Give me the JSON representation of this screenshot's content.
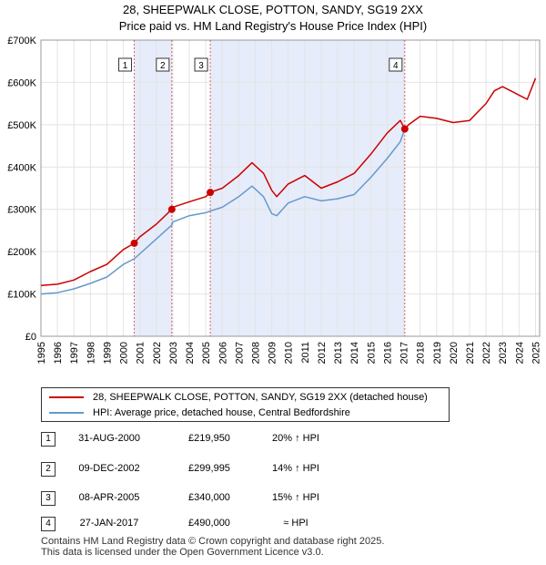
{
  "colors": {
    "property_line": "#cc0000",
    "hpi_line": "#6699cc",
    "shade": "#dde6f7",
    "marker_line": "#cc0000"
  },
  "footer": {
    "line1": "Contains HM Land Registry data © Crown copyright and database right 2025.",
    "line2": "This data is licensed under the Open Government Licence v3.0."
  },
  "chart_data": {
    "type": "line",
    "title": "28, SHEEPWALK CLOSE, POTTON, SANDY, SG19 2XX",
    "subtitle": "Price paid vs. HM Land Registry's House Price Index (HPI)",
    "xlim": [
      1995,
      2025.25
    ],
    "ylim": [
      0,
      700000
    ],
    "yticks": [
      0,
      100000,
      200000,
      300000,
      400000,
      500000,
      600000,
      700000
    ],
    "ytick_labels": [
      "£0",
      "£100K",
      "£200K",
      "£300K",
      "£400K",
      "£500K",
      "£600K",
      "£700K"
    ],
    "xticks": [
      "1995",
      "1996",
      "1997",
      "1998",
      "1999",
      "2000",
      "2001",
      "2002",
      "2003",
      "2004",
      "2005",
      "2006",
      "2007",
      "2008",
      "2009",
      "2010",
      "2011",
      "2012",
      "2013",
      "2014",
      "2015",
      "2016",
      "2017",
      "2018",
      "2019",
      "2020",
      "2021",
      "2022",
      "2023",
      "2024",
      "2025"
    ],
    "legend": {
      "position": "below",
      "entries": [
        "28, SHEEPWALK CLOSE, POTTON, SANDY, SG19 2XX (detached house)",
        "HPI: Average price, detached house, Central Bedfordshire"
      ]
    },
    "shaded_ranges": [
      [
        2000.66,
        2002.94
      ],
      [
        2005.27,
        2017.07
      ]
    ],
    "series": [
      {
        "name": "28, SHEEPWALK CLOSE, POTTON, SANDY, SG19 2XX (detached house)",
        "x": [
          1995,
          1996,
          1997,
          1998,
          1999,
          2000,
          2000.66,
          2001,
          2002,
          2002.94,
          2003,
          2004,
          2005,
          2005.27,
          2006,
          2007,
          2007.8,
          2008.5,
          2009,
          2009.3,
          2010,
          2011,
          2012,
          2013,
          2014,
          2015,
          2016,
          2016.8,
          2017.07,
          2017.3,
          2018,
          2019,
          2020,
          2021,
          2022,
          2022.5,
          2023,
          2023.5,
          2024,
          2024.5,
          2025
        ],
        "y": [
          120000,
          123000,
          133000,
          153000,
          170000,
          205000,
          219950,
          235000,
          265000,
          299995,
          305000,
          318000,
          330000,
          340000,
          350000,
          380000,
          410000,
          385000,
          345000,
          330000,
          360000,
          380000,
          350000,
          365000,
          385000,
          430000,
          480000,
          510000,
          490000,
          500000,
          520000,
          515000,
          505000,
          510000,
          550000,
          580000,
          590000,
          580000,
          570000,
          560000,
          610000
        ]
      },
      {
        "name": "HPI: Average price, detached house, Central Bedfordshire",
        "x": [
          1995,
          1996,
          1997,
          1998,
          1999,
          2000,
          2000.66,
          2001,
          2002,
          2002.94,
          2003,
          2004,
          2005,
          2005.27,
          2006,
          2007,
          2007.8,
          2008.5,
          2009,
          2009.3,
          2010,
          2011,
          2012,
          2013,
          2014,
          2015,
          2016,
          2016.8,
          2017.07
        ],
        "y": [
          100000,
          103000,
          112000,
          125000,
          140000,
          170000,
          183000,
          195000,
          230000,
          263000,
          270000,
          285000,
          292000,
          296000,
          305000,
          330000,
          355000,
          330000,
          290000,
          285000,
          315000,
          330000,
          320000,
          325000,
          335000,
          375000,
          420000,
          460000,
          490000
        ]
      }
    ],
    "transactions": [
      {
        "num": "1",
        "date": "31-AUG-2000",
        "x": 2000.66,
        "price": 219950,
        "price_label": "£219,950",
        "hpi_label": "20% ↑ HPI"
      },
      {
        "num": "2",
        "date": "09-DEC-2002",
        "x": 2002.94,
        "price": 299995,
        "price_label": "£299,995",
        "hpi_label": "14% ↑ HPI"
      },
      {
        "num": "3",
        "date": "08-APR-2005",
        "x": 2005.27,
        "price": 340000,
        "price_label": "£340,000",
        "hpi_label": "15% ↑ HPI"
      },
      {
        "num": "4",
        "date": "27-JAN-2017",
        "x": 2017.07,
        "price": 490000,
        "price_label": "£490,000",
        "hpi_label": "≈ HPI"
      }
    ]
  }
}
